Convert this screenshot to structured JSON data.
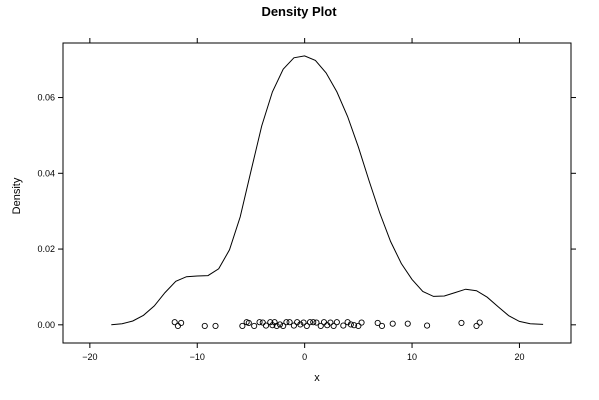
{
  "chart_data": {
    "type": "line",
    "title": "Density Plot",
    "xlabel": "x",
    "ylabel": "Density",
    "xlim": [
      -22.5,
      24.8
    ],
    "ylim": [
      -0.0048,
      0.0744
    ],
    "x_ticks": [
      -20,
      -10,
      0,
      10,
      20
    ],
    "x_tick_labels": [
      "−20",
      "−10",
      "0",
      "10",
      "20"
    ],
    "y_ticks": [
      0.0,
      0.02,
      0.04,
      0.06
    ],
    "y_tick_labels": [
      "0.00",
      "0.02",
      "0.04",
      "0.06"
    ],
    "grid": false,
    "series": [
      {
        "style": "line",
        "color": "#000000",
        "x": [
          -18.0,
          -17.0,
          -16.0,
          -15.0,
          -14.0,
          -13.0,
          -12.0,
          -11.0,
          -10.0,
          -9.0,
          -8.0,
          -7.0,
          -6.0,
          -5.0,
          -4.0,
          -3.0,
          -2.0,
          -1.0,
          0.0,
          1.0,
          2.0,
          3.0,
          4.0,
          5.0,
          6.0,
          7.0,
          8.0,
          9.0,
          10.0,
          11.0,
          12.0,
          13.0,
          14.0,
          15.0,
          16.0,
          17.0,
          18.0,
          19.0,
          20.0,
          21.0,
          22.2
        ],
        "y": [
          0.0,
          0.0003,
          0.001,
          0.0025,
          0.005,
          0.0085,
          0.0115,
          0.0127,
          0.0129,
          0.013,
          0.0148,
          0.0198,
          0.0285,
          0.0405,
          0.0525,
          0.0615,
          0.0675,
          0.0705,
          0.071,
          0.0698,
          0.0665,
          0.0615,
          0.055,
          0.047,
          0.038,
          0.0295,
          0.022,
          0.0162,
          0.012,
          0.0088,
          0.0075,
          0.0076,
          0.0085,
          0.0094,
          0.009,
          0.0073,
          0.0048,
          0.0024,
          0.0009,
          0.0003,
          0.0001
        ]
      },
      {
        "style": "rug",
        "marker": "open-circle",
        "color": "#000000",
        "x": [
          -12.1,
          -11.8,
          -11.5,
          -9.3,
          -8.3,
          -5.8,
          -5.4,
          -5.2,
          -4.7,
          -4.2,
          -3.9,
          -3.6,
          -3.2,
          -3.0,
          -2.8,
          -2.6,
          -2.3,
          -2.0,
          -1.7,
          -1.4,
          -1.0,
          -0.7,
          -0.4,
          -0.1,
          0.2,
          0.5,
          0.8,
          1.1,
          1.5,
          1.8,
          2.1,
          2.4,
          2.7,
          3.0,
          3.6,
          4.0,
          4.3,
          4.6,
          5.0,
          5.3,
          6.8,
          7.2,
          8.2,
          9.6,
          11.4,
          14.6,
          16.0,
          16.3
        ],
        "y": [
          0.0007,
          -0.0003,
          0.0005,
          -0.0003,
          -0.0003,
          -0.0003,
          0.0007,
          0.0005,
          -0.0003,
          0.0007,
          0.0006,
          -0.0002,
          0.0007,
          -0.0001,
          0.0007,
          -0.0003,
          0.0001,
          -0.0003,
          0.0007,
          0.0007,
          -0.0002,
          0.0007,
          0.0001,
          0.0006,
          -0.0003,
          0.0007,
          0.0007,
          0.0006,
          -0.0003,
          0.0007,
          -0.0001,
          0.0006,
          -0.0003,
          0.0007,
          -0.0002,
          0.0007,
          0.0001,
          -0.0001,
          -0.0003,
          0.0006,
          0.0005,
          -0.0003,
          0.0003,
          0.0003,
          -0.0002,
          0.0005,
          -0.0003,
          0.0006
        ]
      }
    ]
  }
}
